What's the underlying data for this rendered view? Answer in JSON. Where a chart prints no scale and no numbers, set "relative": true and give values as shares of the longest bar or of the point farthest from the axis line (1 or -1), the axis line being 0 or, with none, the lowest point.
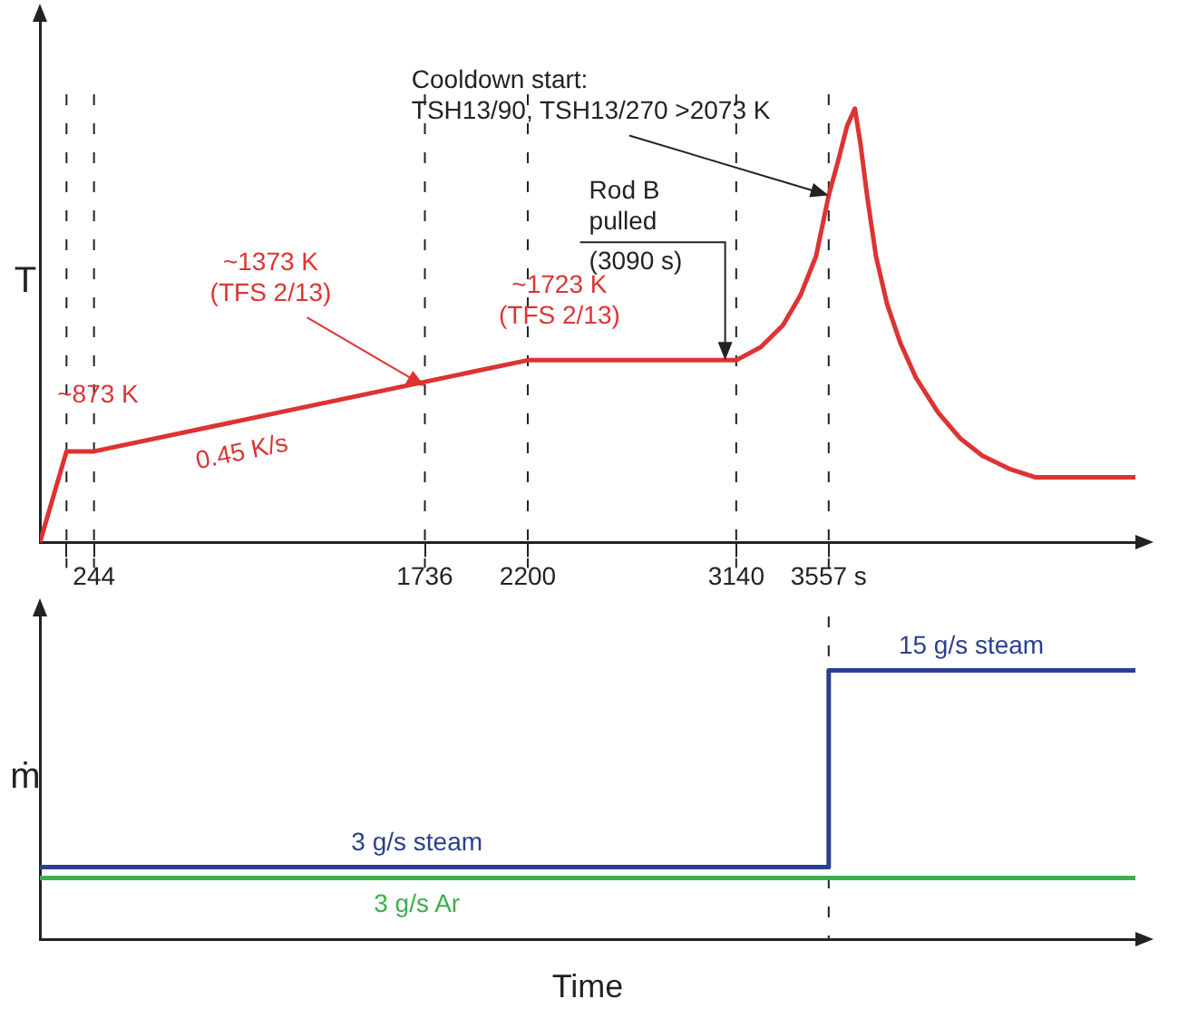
{
  "chart_data": [
    {
      "type": "line",
      "ylabel": "T",
      "relative": true,
      "tick_labels": "x",
      "xlim": [
        0,
        4940
      ],
      "xticks": [
        {
          "value": 120,
          "label": null
        },
        244,
        1736,
        2200,
        3140,
        {
          "value": 3557,
          "label": "3557 s"
        }
      ],
      "series": [
        {
          "color": "#dd3333",
          "x": [
            0,
            120,
            244,
            2200,
            3140,
            3250,
            3350,
            3430,
            3500,
            3557,
            3600,
            3640,
            3675,
            3700,
            3730,
            3770,
            3820,
            3880,
            3950,
            4050,
            4150,
            4250,
            4370,
            4490,
            4940
          ],
          "values": [
            0,
            0.21,
            0.21,
            0.42,
            0.42,
            0.45,
            0.5,
            0.57,
            0.66,
            0.8,
            0.88,
            0.96,
            1,
            0.92,
            0.8,
            0.66,
            0.55,
            0.46,
            0.38,
            0.3,
            0.24,
            0.2,
            0.17,
            0.15,
            0.15
          ]
        }
      ],
      "ref_lines": [
        {
          "axis": "x",
          "value": 120,
          "line_style": "dashed"
        },
        {
          "axis": "x",
          "value": 244,
          "line_style": "dashed"
        },
        {
          "axis": "x",
          "value": 1736,
          "line_style": "dashed"
        },
        {
          "axis": "x",
          "value": 2200,
          "line_style": "dashed"
        },
        {
          "axis": "x",
          "value": 3140,
          "line_style": "dashed"
        },
        {
          "axis": "x",
          "value": 3557,
          "line_style": "dashed"
        }
      ],
      "annotations": [
        {
          "text": "~873 K",
          "x": 180,
          "y": 0.21
        },
        {
          "text": "0.45 K/s",
          "x": 900,
          "y": 0.26
        },
        {
          "text": "~1373 K\n(TFS 2/13)",
          "x": 1736,
          "y": 0.36
        },
        {
          "text": "~1723 K\n(TFS 2/13)",
          "x": 2670,
          "y": 0.42
        },
        {
          "text": "Rod B\npulled\n(3090 s)",
          "x": 3090,
          "y": 0.42
        },
        {
          "text": "Cooldown start:\nTSH13/90, TSH13/270 >2073 K",
          "x": 3557,
          "y": 0.8
        }
      ]
    },
    {
      "type": "step",
      "ylabel": "ṁ",
      "xlabel": "Time",
      "relative": true,
      "tick_labels": false,
      "xlim": [
        0,
        4940
      ],
      "series": [
        {
          "color": "#2b3f8f",
          "x": [
            0,
            3557,
            4940
          ],
          "values": [
            0.27,
            1,
            1
          ]
        },
        {
          "color": "#3fae49",
          "x": [
            0,
            4940
          ],
          "values": [
            0.23,
            0.23
          ]
        }
      ],
      "ref_lines": [
        {
          "axis": "x",
          "value": 3557,
          "line_style": "dashed"
        }
      ],
      "annotations": [
        {
          "text": "15 g/s steam",
          "x": 4200,
          "y": 1
        },
        {
          "text": "3 g/s steam",
          "x": 1700,
          "y": 0.27
        },
        {
          "text": "3 g/s Ar",
          "x": 1700,
          "y": 0.23
        }
      ]
    }
  ]
}
